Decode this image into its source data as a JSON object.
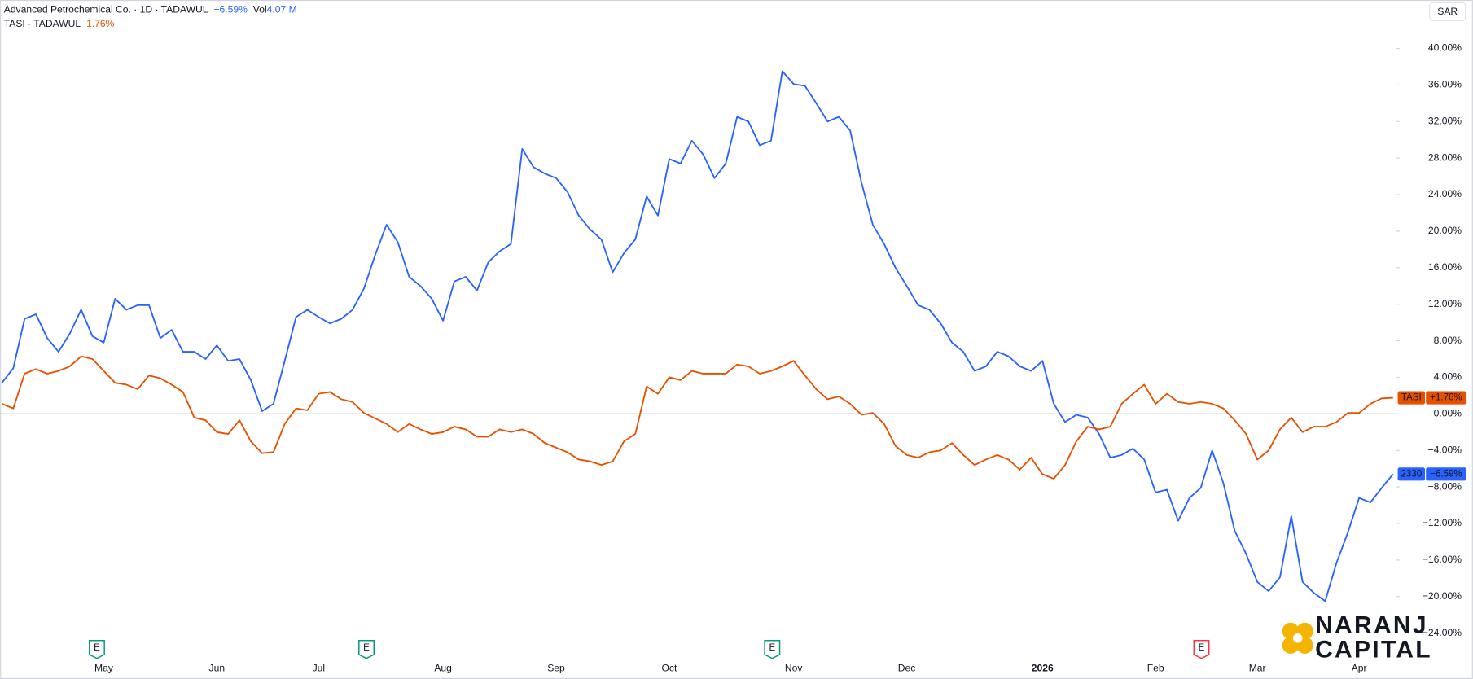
{
  "chart_data": {
    "type": "line",
    "legend": [
      {
        "label": "Advanced Petrochemical Co. · 1D · TADAWUL",
        "change": "−6.59%",
        "vol_label": "Vol",
        "vol": "4.07 M",
        "color": "#2962ff"
      },
      {
        "label": "TASI · TADAWUL",
        "change": "1.76%",
        "color": "#e65100"
      }
    ],
    "currency": "SAR",
    "categories": [
      null,
      null,
      null,
      null,
      null,
      null,
      null,
      null,
      null,
      "May",
      null,
      null,
      null,
      null,
      null,
      null,
      null,
      null,
      null,
      "Jun",
      null,
      null,
      null,
      null,
      null,
      null,
      null,
      null,
      "Jul",
      null,
      null,
      null,
      null,
      null,
      null,
      null,
      null,
      null,
      null,
      "Aug",
      null,
      null,
      null,
      null,
      null,
      null,
      null,
      null,
      null,
      "Sep",
      null,
      null,
      null,
      null,
      null,
      null,
      null,
      null,
      null,
      "Oct",
      null,
      null,
      null,
      null,
      null,
      null,
      null,
      null,
      null,
      null,
      "Nov",
      null,
      null,
      null,
      null,
      null,
      null,
      null,
      null,
      null,
      "Dec",
      null,
      null,
      null,
      null,
      null,
      null,
      null,
      null,
      null,
      null,
      null,
      "2026",
      null,
      null,
      null,
      null,
      null,
      null,
      null,
      null,
      null,
      "Feb",
      null,
      null,
      null,
      null,
      null,
      null,
      null,
      null,
      "Mar",
      null,
      null,
      null,
      null,
      null,
      null,
      null,
      null,
      "Apr",
      null,
      null,
      null
    ],
    "series": [
      {
        "name": "2330",
        "color": "#2962ff",
        "last_label": "−6.59%",
        "values": [
          3.4,
          5,
          10.4,
          10.9,
          8.3,
          6.8,
          8.8,
          11.4,
          8.5,
          7.8,
          12.6,
          11.4,
          11.9,
          11.9,
          8.3,
          9.2,
          6.8,
          6.8,
          6,
          7.5,
          5.8,
          6,
          3.7,
          0.3,
          1.1,
          5.8,
          10.6,
          11.4,
          10.6,
          9.9,
          10.4,
          11.4,
          13.7,
          17.4,
          20.7,
          18.8,
          15,
          14,
          12.6,
          10.2,
          14.5,
          15,
          13.5,
          16.6,
          17.8,
          18.6,
          29,
          27,
          26.3,
          25.8,
          24.3,
          21.7,
          20.2,
          19.1,
          15.5,
          17.6,
          19.1,
          23.8,
          21.7,
          27.9,
          27.4,
          29.9,
          28.4,
          25.8,
          27.4,
          32.5,
          32,
          29.4,
          29.9,
          37.5,
          36.1,
          35.9,
          34,
          32,
          32.5,
          31,
          25.3,
          20.7,
          18.6,
          16,
          14,
          11.9,
          11.4,
          9.9,
          7.8,
          6.8,
          4.7,
          5.2,
          6.8,
          6.3,
          5.2,
          4.7,
          5.8,
          1.1,
          -0.9,
          -0.1,
          -0.4,
          -2.2,
          -4.8,
          -4.5,
          -3.8,
          -5,
          -8.6,
          -8.3,
          -11.7,
          -9.2,
          -8.1,
          -4,
          -7.6,
          -12.8,
          -15.3,
          -18.4,
          -19.4,
          -17.9,
          -11.2,
          -18.4,
          -19.6,
          -20.5,
          -16.3,
          -13,
          -9.2,
          -9.7,
          -8.1,
          -6.59
        ]
      },
      {
        "name": "TASI",
        "color": "#e65100",
        "last_label": "+1.76%",
        "values": [
          1.1,
          0.6,
          4.4,
          4.9,
          4.4,
          4.7,
          5.2,
          6.3,
          6,
          4.7,
          3.4,
          3.2,
          2.7,
          4.2,
          3.9,
          3.2,
          2.4,
          -0.4,
          -0.7,
          -2,
          -2.2,
          -0.7,
          -3,
          -4.3,
          -4.2,
          -1.1,
          0.6,
          0.4,
          2.2,
          2.4,
          1.6,
          1.3,
          0.1,
          -0.5,
          -1.1,
          -2,
          -1.1,
          -1.7,
          -2.2,
          -2,
          -1.4,
          -1.7,
          -2.5,
          -2.5,
          -1.7,
          -2,
          -1.7,
          -2.2,
          -3.2,
          -3.7,
          -4.2,
          -5,
          -5.2,
          -5.6,
          -5.2,
          -3,
          -2.2,
          3,
          2.2,
          4,
          3.7,
          4.7,
          4.4,
          4.4,
          4.4,
          5.4,
          5.2,
          4.4,
          4.7,
          5.2,
          5.8,
          4.2,
          2.7,
          1.6,
          1.9,
          1.1,
          -0.1,
          0.1,
          -1.1,
          -3.5,
          -4.5,
          -4.8,
          -4.2,
          -4,
          -3.2,
          -4.5,
          -5.6,
          -5,
          -4.5,
          -5,
          -6.1,
          -4.8,
          -6.6,
          -7.1,
          -5.6,
          -3,
          -1.4,
          -1.7,
          -1.4,
          1.1,
          2.2,
          3.2,
          1.1,
          2.2,
          1.3,
          1.1,
          1.3,
          1.1,
          0.6,
          -0.7,
          -2.2,
          -5,
          -4,
          -1.7,
          -0.4,
          -2,
          -1.4,
          -1.4,
          -0.9,
          0.1,
          0.1,
          1.1,
          1.7,
          1.76
        ]
      }
    ],
    "ylim": [
      -24.6,
      45.3
    ],
    "yticks": [
      {
        "value": 40,
        "label": "40.00%"
      },
      {
        "value": 36,
        "label": "36.00%"
      },
      {
        "value": 32,
        "label": "32.00%"
      },
      {
        "value": 28,
        "label": "28.00%"
      },
      {
        "value": 24,
        "label": "24.00%"
      },
      {
        "value": 20,
        "label": "20.00%"
      },
      {
        "value": 16,
        "label": "16.00%"
      },
      {
        "value": 12,
        "label": "12.00%"
      },
      {
        "value": 8,
        "label": "8.00%"
      },
      {
        "value": 4,
        "label": "4.00%"
      },
      {
        "value": 0,
        "label": "0.00%"
      },
      {
        "value": -4,
        "label": "−4.00%"
      },
      {
        "value": -8,
        "label": "−8.00%"
      },
      {
        "value": -12,
        "label": "−12.00%"
      },
      {
        "value": -16,
        "label": "−16.00%"
      },
      {
        "value": -20,
        "label": "−20.00%"
      },
      {
        "value": -24,
        "label": "−24.00%"
      }
    ],
    "baseline": 0,
    "events": [
      {
        "label": "E",
        "color": "#089981"
      },
      {
        "label": "E",
        "color": "#089981"
      },
      {
        "label": "E",
        "color": "#089981"
      },
      {
        "label": "E",
        "color": "#f23645"
      }
    ],
    "logo": {
      "line1": "NARANJ",
      "line2": "CAPITAL"
    }
  }
}
